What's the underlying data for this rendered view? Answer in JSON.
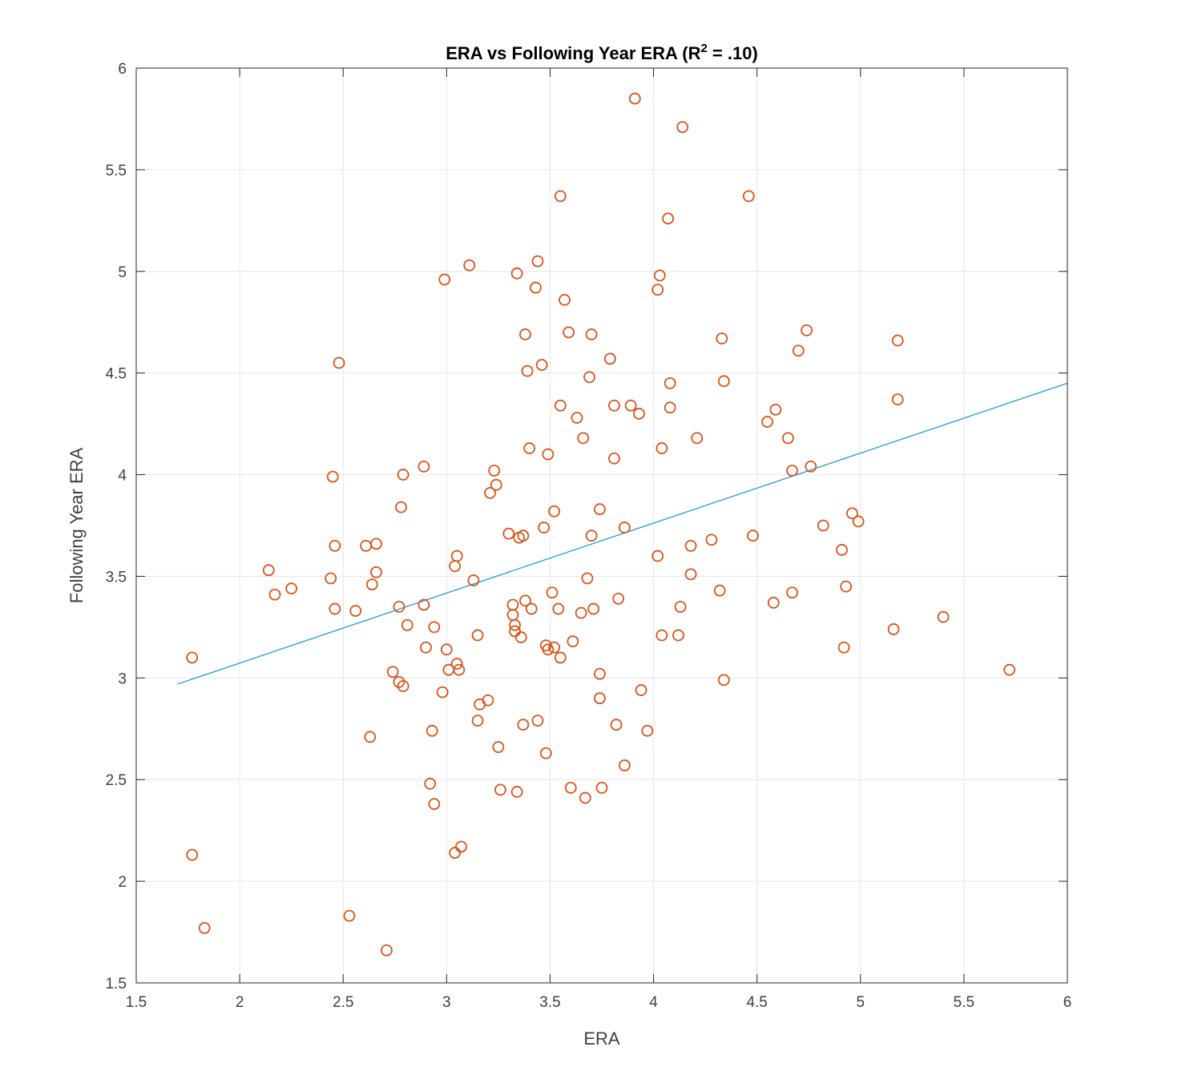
{
  "chart_data": {
    "type": "scatter",
    "title_main": "ERA vs Following Year ERA (R",
    "title_sup": "2",
    "title_end": " = .10)",
    "xlabel": "ERA",
    "ylabel": "Following Year ERA",
    "xlim": [
      1.5,
      6
    ],
    "ylim": [
      1.5,
      6
    ],
    "xticks": [
      "1.5",
      "2",
      "2.5",
      "3",
      "3.5",
      "4",
      "4.5",
      "5",
      "5.5",
      "6"
    ],
    "yticks": [
      "1.5",
      "2",
      "2.5",
      "3",
      "3.5",
      "4",
      "4.5",
      "5",
      "5.5",
      "6"
    ],
    "xtick_values": [
      1.5,
      2,
      2.5,
      3,
      3.5,
      4,
      4.5,
      5,
      5.5,
      6
    ],
    "ytick_values": [
      1.5,
      2,
      2.5,
      3,
      3.5,
      4,
      4.5,
      5,
      5.5,
      6
    ],
    "grid": true,
    "colors": {
      "points": "#d95319",
      "fit": "#1f9ad6"
    },
    "fit_line": [
      [
        1.7,
        2.97
      ],
      [
        6.0,
        4.45
      ]
    ],
    "points": [
      [
        1.77,
        3.1
      ],
      [
        1.77,
        2.13
      ],
      [
        1.83,
        1.77
      ],
      [
        2.14,
        3.53
      ],
      [
        2.17,
        3.41
      ],
      [
        2.25,
        3.44
      ],
      [
        2.44,
        3.49
      ],
      [
        2.45,
        3.99
      ],
      [
        2.46,
        3.65
      ],
      [
        2.46,
        3.34
      ],
      [
        2.48,
        4.55
      ],
      [
        2.53,
        1.83
      ],
      [
        2.56,
        3.33
      ],
      [
        2.61,
        3.65
      ],
      [
        2.63,
        2.71
      ],
      [
        2.64,
        3.46
      ],
      [
        2.66,
        3.52
      ],
      [
        2.66,
        3.66
      ],
      [
        2.71,
        1.66
      ],
      [
        2.74,
        3.03
      ],
      [
        2.77,
        2.98
      ],
      [
        2.77,
        3.35
      ],
      [
        2.78,
        3.84
      ],
      [
        2.79,
        4.0
      ],
      [
        2.79,
        2.96
      ],
      [
        2.81,
        3.26
      ],
      [
        2.89,
        4.04
      ],
      [
        2.89,
        3.36
      ],
      [
        2.9,
        3.15
      ],
      [
        2.92,
        2.48
      ],
      [
        2.93,
        2.74
      ],
      [
        2.94,
        3.25
      ],
      [
        2.94,
        2.38
      ],
      [
        2.98,
        2.93
      ],
      [
        2.99,
        4.96
      ],
      [
        3.0,
        3.14
      ],
      [
        3.01,
        3.04
      ],
      [
        3.04,
        3.55
      ],
      [
        3.04,
        2.14
      ],
      [
        3.05,
        3.6
      ],
      [
        3.05,
        3.07
      ],
      [
        3.06,
        3.04
      ],
      [
        3.07,
        2.17
      ],
      [
        3.11,
        5.03
      ],
      [
        3.13,
        3.48
      ],
      [
        3.15,
        3.21
      ],
      [
        3.15,
        2.79
      ],
      [
        3.16,
        2.87
      ],
      [
        3.2,
        2.89
      ],
      [
        3.21,
        3.91
      ],
      [
        3.23,
        4.02
      ],
      [
        3.24,
        3.95
      ],
      [
        3.25,
        2.66
      ],
      [
        3.26,
        2.45
      ],
      [
        3.3,
        3.71
      ],
      [
        3.32,
        3.36
      ],
      [
        3.32,
        3.31
      ],
      [
        3.33,
        3.26
      ],
      [
        3.33,
        3.23
      ],
      [
        3.34,
        4.99
      ],
      [
        3.34,
        2.44
      ],
      [
        3.35,
        3.69
      ],
      [
        3.36,
        3.2
      ],
      [
        3.37,
        3.7
      ],
      [
        3.37,
        2.77
      ],
      [
        3.38,
        3.38
      ],
      [
        3.38,
        4.69
      ],
      [
        3.39,
        4.51
      ],
      [
        3.4,
        4.13
      ],
      [
        3.41,
        3.34
      ],
      [
        3.43,
        4.92
      ],
      [
        3.44,
        5.05
      ],
      [
        3.44,
        2.79
      ],
      [
        3.46,
        4.54
      ],
      [
        3.47,
        3.74
      ],
      [
        3.48,
        3.16
      ],
      [
        3.48,
        2.63
      ],
      [
        3.49,
        3.14
      ],
      [
        3.49,
        4.1
      ],
      [
        3.51,
        3.42
      ],
      [
        3.52,
        3.82
      ],
      [
        3.52,
        3.15
      ],
      [
        3.54,
        3.34
      ],
      [
        3.55,
        5.37
      ],
      [
        3.55,
        4.34
      ],
      [
        3.55,
        3.1
      ],
      [
        3.57,
        4.86
      ],
      [
        3.59,
        4.7
      ],
      [
        3.6,
        2.46
      ],
      [
        3.61,
        3.18
      ],
      [
        3.63,
        4.28
      ],
      [
        3.65,
        3.32
      ],
      [
        3.66,
        4.18
      ],
      [
        3.67,
        2.41
      ],
      [
        3.68,
        3.49
      ],
      [
        3.69,
        4.48
      ],
      [
        3.7,
        3.7
      ],
      [
        3.7,
        4.69
      ],
      [
        3.71,
        3.34
      ],
      [
        3.74,
        3.83
      ],
      [
        3.74,
        3.02
      ],
      [
        3.74,
        2.9
      ],
      [
        3.75,
        2.46
      ],
      [
        3.79,
        4.57
      ],
      [
        3.81,
        4.34
      ],
      [
        3.81,
        4.08
      ],
      [
        3.82,
        2.77
      ],
      [
        3.83,
        3.39
      ],
      [
        3.86,
        3.74
      ],
      [
        3.86,
        2.57
      ],
      [
        3.89,
        4.34
      ],
      [
        3.91,
        5.85
      ],
      [
        3.93,
        4.3
      ],
      [
        3.94,
        2.94
      ],
      [
        3.97,
        2.74
      ],
      [
        4.02,
        3.6
      ],
      [
        4.02,
        4.91
      ],
      [
        4.03,
        4.98
      ],
      [
        4.04,
        3.21
      ],
      [
        4.04,
        4.13
      ],
      [
        4.07,
        5.26
      ],
      [
        4.08,
        4.45
      ],
      [
        4.08,
        4.33
      ],
      [
        4.12,
        3.21
      ],
      [
        4.13,
        3.35
      ],
      [
        4.14,
        5.71
      ],
      [
        4.18,
        3.65
      ],
      [
        4.18,
        3.51
      ],
      [
        4.21,
        4.18
      ],
      [
        4.28,
        3.68
      ],
      [
        4.32,
        3.43
      ],
      [
        4.33,
        4.67
      ],
      [
        4.34,
        4.46
      ],
      [
        4.34,
        2.99
      ],
      [
        4.46,
        5.37
      ],
      [
        4.48,
        3.7
      ],
      [
        4.55,
        4.26
      ],
      [
        4.58,
        3.37
      ],
      [
        4.59,
        4.32
      ],
      [
        4.65,
        4.18
      ],
      [
        4.67,
        4.02
      ],
      [
        4.67,
        3.42
      ],
      [
        4.7,
        4.61
      ],
      [
        4.74,
        4.71
      ],
      [
        4.76,
        4.04
      ],
      [
        4.82,
        3.75
      ],
      [
        4.91,
        3.63
      ],
      [
        4.92,
        3.15
      ],
      [
        4.93,
        3.45
      ],
      [
        4.96,
        3.81
      ],
      [
        4.99,
        3.77
      ],
      [
        5.16,
        3.24
      ],
      [
        5.18,
        4.37
      ],
      [
        5.18,
        4.66
      ],
      [
        5.4,
        3.3
      ],
      [
        5.72,
        3.04
      ]
    ]
  }
}
